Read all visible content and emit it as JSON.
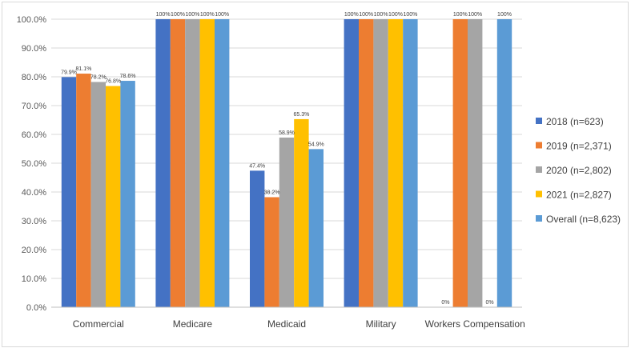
{
  "chart_data": {
    "type": "bar",
    "title": "",
    "xlabel": "",
    "ylabel": "",
    "ylim": [
      0,
      100
    ],
    "ytick_step": 10,
    "y_tick_labels": [
      "0.0%",
      "10.0%",
      "20.0%",
      "30.0%",
      "40.0%",
      "50.0%",
      "60.0%",
      "70.0%",
      "80.0%",
      "90.0%",
      "100.0%"
    ],
    "grid": true,
    "legend_position": "right",
    "categories": [
      "Commercial",
      "Medicare",
      "Medicaid",
      "Military",
      "Workers Compensation"
    ],
    "series": [
      {
        "name": "2018 (n=623)",
        "color": "#4472c4",
        "values": [
          79.9,
          100,
          47.4,
          100,
          0
        ],
        "labels": [
          "79.9%",
          "100%",
          "47.4%",
          "100%",
          "0%"
        ]
      },
      {
        "name": "2019 (n=2,371)",
        "color": "#ed7d31",
        "values": [
          81.1,
          100,
          38.2,
          100,
          100
        ],
        "labels": [
          "81.1%",
          "100%",
          "38.2%",
          "100%",
          "100%"
        ]
      },
      {
        "name": "2020 (n=2,802)",
        "color": "#a5a5a5",
        "values": [
          78.2,
          100,
          58.9,
          100,
          100
        ],
        "labels": [
          "78.2%",
          "100%",
          "58.9%",
          "100%",
          "100%"
        ]
      },
      {
        "name": "2021 (n=2,827)",
        "color": "#ffc000",
        "values": [
          76.8,
          100,
          65.3,
          100,
          0
        ],
        "labels": [
          "76.8%",
          "100%",
          "65.3%",
          "100%",
          "0%"
        ]
      },
      {
        "name": "Overall (n=8,623)",
        "color": "#5b9bd5",
        "values": [
          78.6,
          100,
          54.9,
          100,
          100
        ],
        "labels": [
          "78.6%",
          "100%",
          "54.9%",
          "100%",
          "100%"
        ]
      }
    ]
  }
}
